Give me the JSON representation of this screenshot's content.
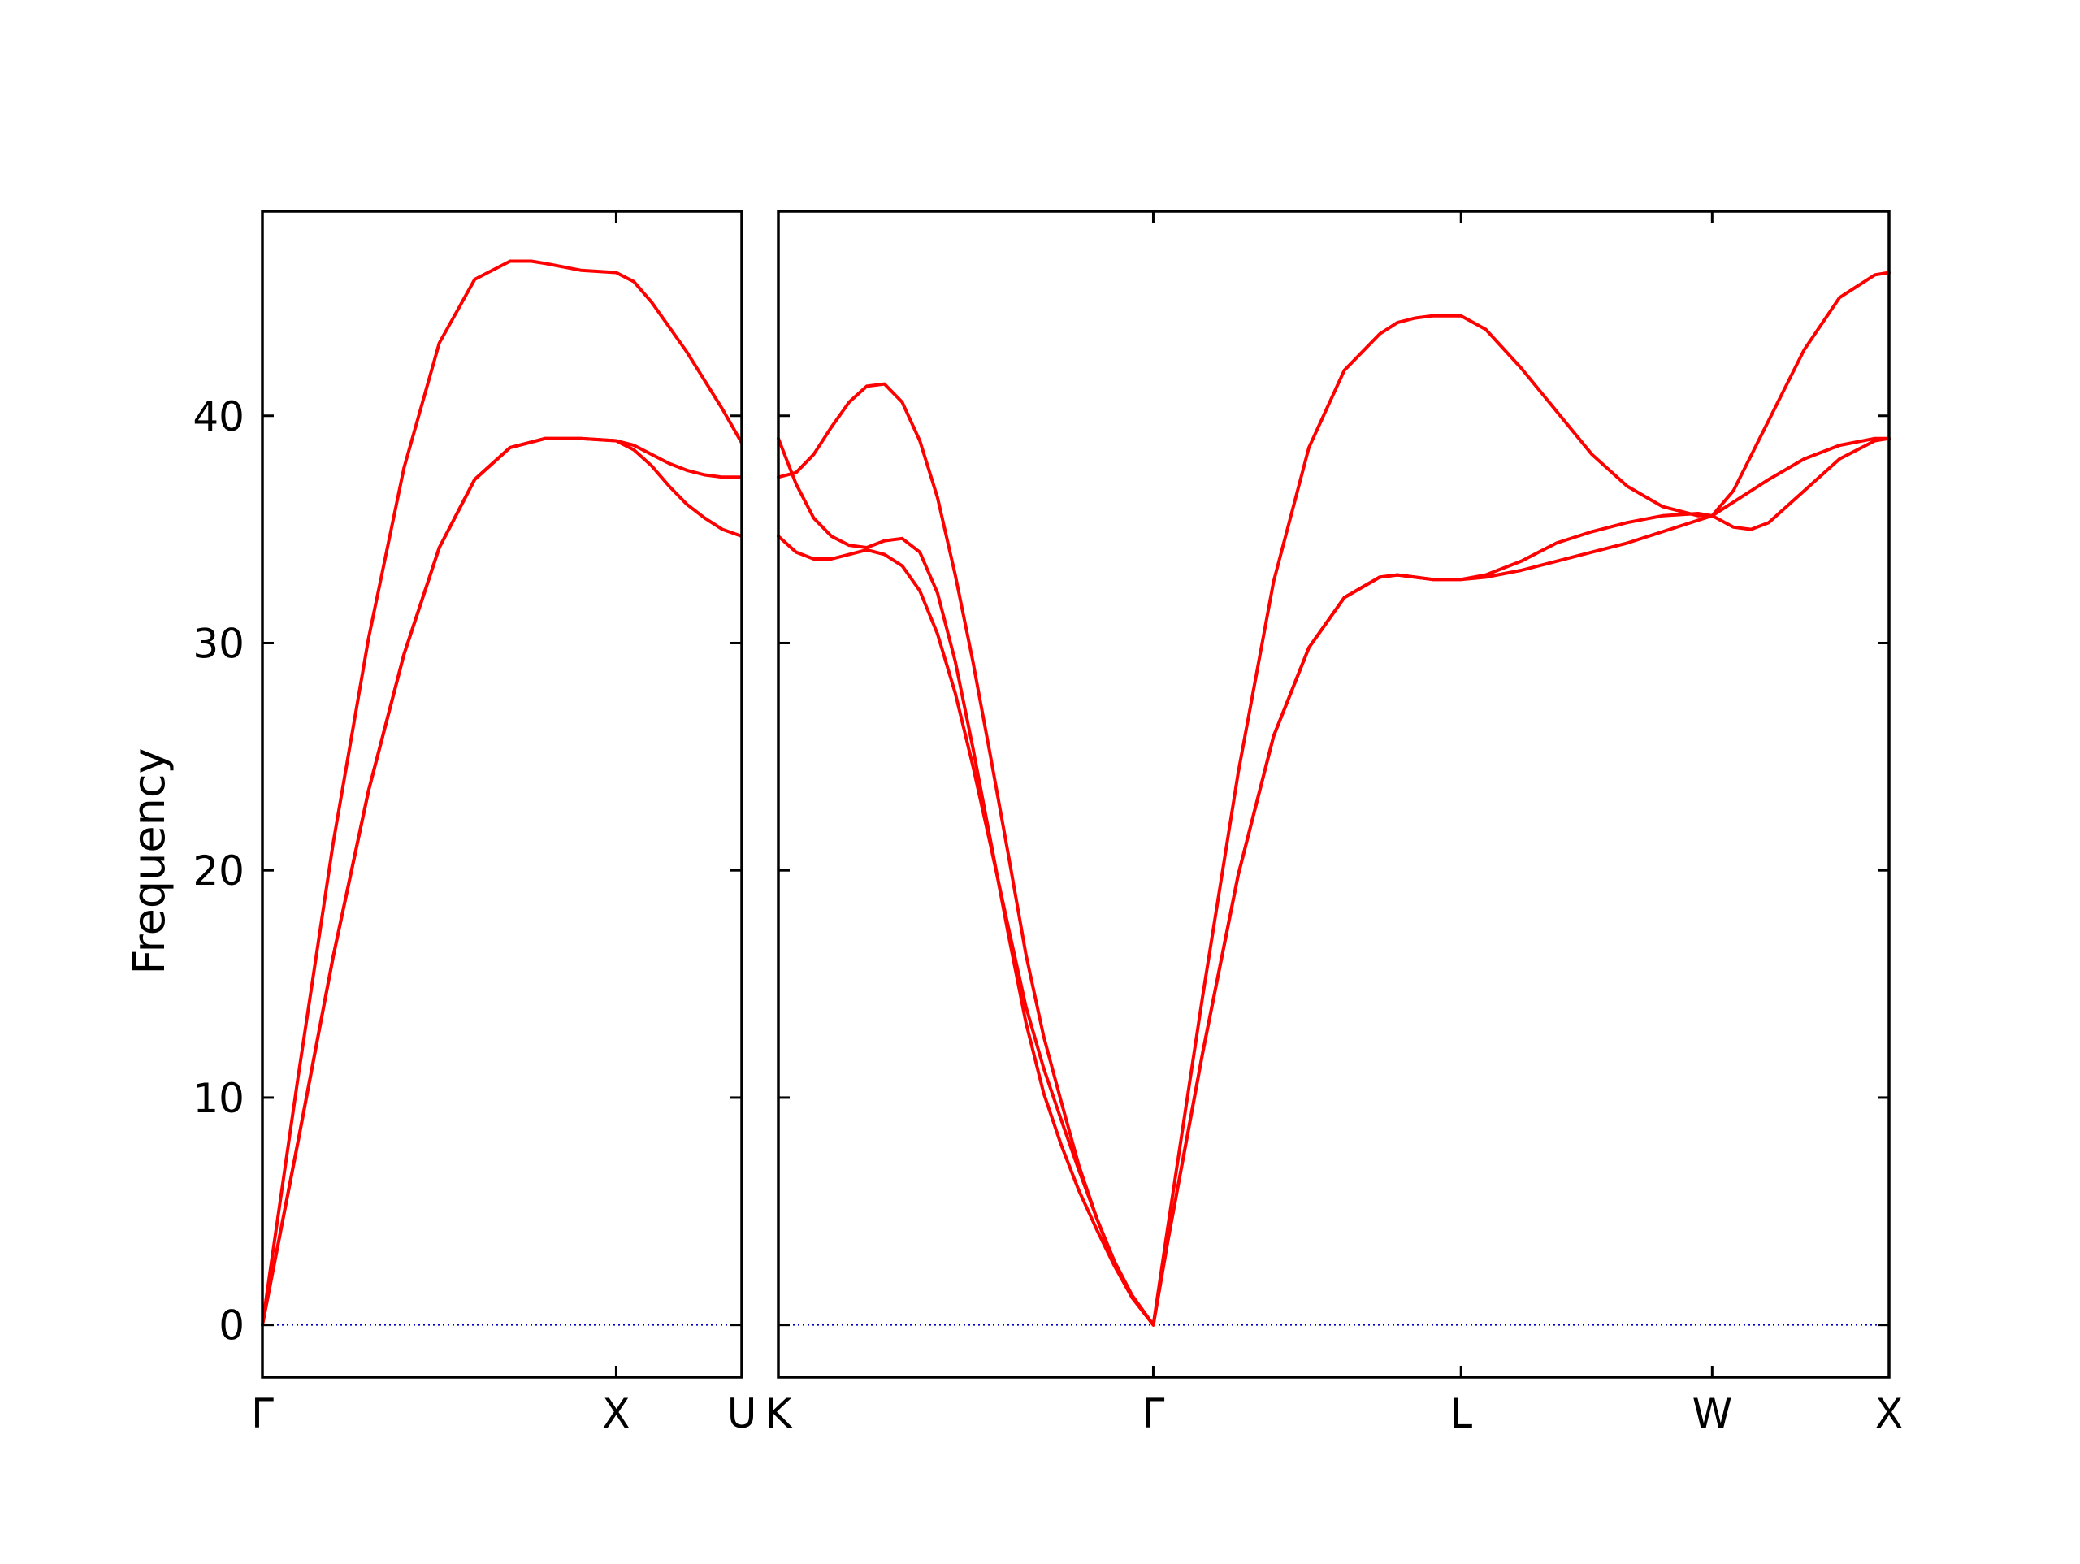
{
  "chart_data": {
    "type": "line",
    "ylabel": "Frequency",
    "ylim": [
      -2.3,
      49
    ],
    "yticks": [
      0,
      10,
      20,
      30,
      40
    ],
    "yticklabels": [
      "0",
      "10",
      "20",
      "30",
      "40"
    ],
    "grid": false,
    "line_color": "#ff0000",
    "zero_line_color": "#0000cc",
    "panels": [
      {
        "xticklabels": [
          "Γ",
          "X",
          "U"
        ],
        "tick_positions": [
          0,
          1,
          1.355
        ],
        "xlim": [
          0,
          1.355
        ],
        "series": [
          {
            "x": [
              0,
              0.1,
              0.2,
              0.3,
              0.4,
              0.5,
              0.6,
              0.7,
              0.76,
              0.8,
              0.9,
              1.0,
              1.05,
              1.1,
              1.2,
              1.3,
              1.355
            ],
            "y": [
              0,
              10.8,
              21.2,
              30.2,
              37.7,
              43.2,
              46.0,
              46.8,
              46.8,
              46.7,
              46.4,
              46.3,
              45.9,
              45.0,
              42.8,
              40.3,
              38.8
            ]
          },
          {
            "x": [
              0,
              0.1,
              0.2,
              0.3,
              0.4,
              0.5,
              0.6,
              0.7,
              0.8,
              0.9,
              1.0,
              1.05,
              1.1,
              1.15,
              1.2,
              1.25,
              1.3,
              1.355
            ],
            "y": [
              0,
              8.0,
              16.2,
              23.5,
              29.5,
              34.2,
              37.2,
              38.6,
              39.0,
              39.0,
              38.9,
              38.7,
              38.3,
              37.9,
              37.6,
              37.4,
              37.3,
              37.3
            ]
          },
          {
            "x": [
              0,
              0.1,
              0.2,
              0.3,
              0.4,
              0.5,
              0.6,
              0.7,
              0.8,
              0.9,
              1.0,
              1.05,
              1.1,
              1.15,
              1.2,
              1.25,
              1.3,
              1.355
            ],
            "y": [
              0,
              8.0,
              16.2,
              23.5,
              29.5,
              34.2,
              37.2,
              38.6,
              39.0,
              39.0,
              38.9,
              38.5,
              37.8,
              36.9,
              36.1,
              35.5,
              35.0,
              34.7
            ]
          }
        ]
      },
      {
        "xticklabels": [
          "K",
          "Γ",
          "L",
          "W",
          "X"
        ],
        "tick_positions": [
          0,
          1.06,
          1.93,
          2.64,
          3.14
        ],
        "xlim": [
          0,
          3.14
        ],
        "series": [
          {
            "x": [
              0,
              0.05,
              0.1,
              0.15,
              0.2,
              0.25,
              0.3,
              0.35,
              0.4,
              0.45,
              0.5,
              0.55,
              0.6,
              0.65,
              0.7,
              0.75,
              0.8,
              0.85,
              0.9,
              0.95,
              1.0,
              1.06,
              1.1,
              1.2,
              1.3,
              1.4,
              1.5,
              1.6,
              1.7,
              1.75,
              1.8,
              1.85,
              1.93,
              2.0,
              2.1,
              2.2,
              2.3,
              2.4,
              2.5,
              2.6,
              2.64,
              2.7,
              2.8,
              2.9,
              3.0,
              3.1,
              3.14
            ],
            "y": [
              37.3,
              37.5,
              38.3,
              39.5,
              40.6,
              41.3,
              41.4,
              40.6,
              38.9,
              36.4,
              33.0,
              29.2,
              25.0,
              20.7,
              16.3,
              12.7,
              9.8,
              7.0,
              4.7,
              2.7,
              1.2,
              0,
              4.2,
              14.5,
              24.3,
              32.7,
              38.6,
              42.0,
              43.6,
              44.1,
              44.3,
              44.4,
              44.4,
              43.8,
              42.1,
              40.2,
              38.3,
              36.9,
              36.0,
              35.6,
              35.6,
              36.7,
              39.8,
              42.9,
              45.2,
              46.2,
              46.3
            ]
          },
          {
            "x": [
              0,
              0.05,
              0.1,
              0.15,
              0.2,
              0.25,
              0.3,
              0.35,
              0.4,
              0.45,
              0.5,
              0.55,
              0.6,
              0.65,
              0.7,
              0.75,
              0.8,
              0.85,
              0.9,
              0.95,
              1.0,
              1.06,
              1.1,
              1.2,
              1.3,
              1.4,
              1.5,
              1.6,
              1.7,
              1.75,
              1.8,
              1.85,
              1.93,
              2.0,
              2.1,
              2.2,
              2.3,
              2.4,
              2.5,
              2.6,
              2.64,
              2.7,
              2.75,
              2.8,
              2.9,
              3.0,
              3.1,
              3.14
            ],
            "y": [
              39.0,
              37.0,
              35.5,
              34.7,
              34.3,
              34.2,
              34.5,
              34.6,
              34.0,
              32.2,
              29.2,
              25.4,
              21.3,
              17.2,
              13.3,
              10.2,
              7.9,
              5.9,
              4.2,
              2.6,
              1.2,
              0,
              3.6,
              12.0,
              19.8,
              25.9,
              29.8,
              32.0,
              32.9,
              33.0,
              32.9,
              32.8,
              32.8,
              33.0,
              33.6,
              34.4,
              34.9,
              35.3,
              35.6,
              35.7,
              35.6,
              35.1,
              35.0,
              35.3,
              36.7,
              38.1,
              38.9,
              39.0
            ]
          },
          {
            "x": [
              0,
              0.05,
              0.1,
              0.15,
              0.2,
              0.25,
              0.3,
              0.35,
              0.4,
              0.45,
              0.5,
              0.55,
              0.6,
              0.65,
              0.7,
              0.75,
              0.8,
              0.85,
              0.9,
              0.95,
              1.0,
              1.06,
              1.1,
              1.2,
              1.3,
              1.4,
              1.5,
              1.6,
              1.7,
              1.75,
              1.8,
              1.85,
              1.93,
              2.0,
              2.1,
              2.2,
              2.3,
              2.4,
              2.5,
              2.6,
              2.64,
              2.7,
              2.8,
              2.9,
              3.0,
              3.1,
              3.14
            ],
            "y": [
              34.7,
              34.0,
              33.7,
              33.7,
              33.9,
              34.1,
              33.9,
              33.4,
              32.3,
              30.4,
              27.8,
              24.6,
              21.1,
              17.5,
              14.0,
              11.3,
              9.0,
              6.8,
              4.7,
              2.8,
              1.3,
              0,
              3.6,
              12.0,
              19.8,
              25.9,
              29.8,
              32.0,
              32.9,
              33.0,
              32.9,
              32.8,
              32.8,
              32.9,
              33.2,
              33.6,
              34.0,
              34.4,
              34.9,
              35.4,
              35.6,
              36.2,
              37.2,
              38.1,
              38.7,
              39.0,
              39.0
            ]
          }
        ]
      }
    ]
  }
}
